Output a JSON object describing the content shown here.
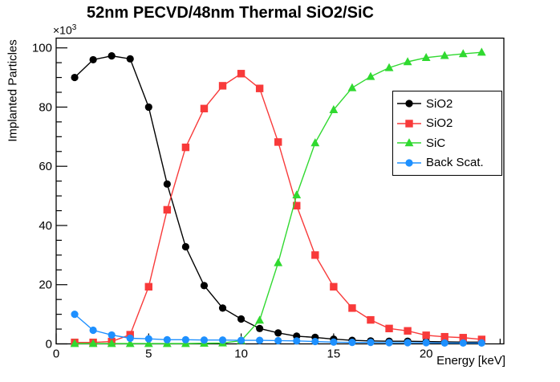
{
  "chart_data": {
    "type": "line",
    "title": "52nm PECVD/48nm Thermal SiO2/SiC",
    "xlabel": "Energy [keV]",
    "ylabel": "Implanted Particles",
    "y_multiplier_base": "×10",
    "y_multiplier_exp": "3",
    "y_unit_multiplier": 1000,
    "grid": false,
    "legend_position": "right-middle",
    "xlim": [
      0,
      24.2
    ],
    "ylim": [
      0,
      103.3
    ],
    "x_major_ticks": [
      0,
      5,
      10,
      15,
      20
    ],
    "x_minor_step": 1,
    "y_major_ticks": [
      0,
      20,
      40,
      60,
      80,
      100
    ],
    "y_minor_step": 5,
    "x": [
      1,
      2,
      3,
      4,
      5,
      6,
      7,
      8,
      9,
      10,
      11,
      12,
      13,
      14,
      15,
      16,
      17,
      18,
      19,
      20,
      21,
      22,
      23
    ],
    "series": [
      {
        "name": "SiO2",
        "color": "#000000",
        "marker": "circle",
        "values": [
          90.0,
          96.0,
          97.3,
          96.3,
          80.0,
          54.0,
          32.8,
          19.7,
          12.1,
          8.4,
          5.2,
          3.7,
          2.6,
          2.2,
          1.6,
          1.2,
          1.0,
          0.9,
          0.9,
          0.8,
          0.7,
          0.6,
          0.6
        ]
      },
      {
        "name": "SiO2",
        "color": "#f83a3a",
        "marker": "square",
        "values": [
          0.5,
          0.5,
          0.8,
          3.1,
          19.3,
          45.3,
          66.4,
          79.5,
          87.2,
          91.3,
          86.3,
          68.2,
          46.7,
          30.0,
          19.3,
          12.1,
          8.1,
          5.2,
          4.4,
          2.9,
          2.4,
          2.1,
          1.5
        ]
      },
      {
        "name": "SiC",
        "color": "#30d930",
        "marker": "triangle",
        "values": [
          0.1,
          0.1,
          0.1,
          0.1,
          0.1,
          0.1,
          0.1,
          0.2,
          0.3,
          1.1,
          8.0,
          27.4,
          50.3,
          67.9,
          79.1,
          86.5,
          90.3,
          93.3,
          95.3,
          96.7,
          97.4,
          98.0,
          98.5
        ]
      },
      {
        "name": "Back Scat.",
        "color": "#1e90ff",
        "marker": "circle",
        "values": [
          10.0,
          4.6,
          3.0,
          1.9,
          1.7,
          1.4,
          1.4,
          1.3,
          1.3,
          1.2,
          1.2,
          1.1,
          1.0,
          0.8,
          0.6,
          0.5,
          0.5,
          0.4,
          0.4,
          0.4,
          0.3,
          0.3,
          0.3
        ]
      }
    ]
  },
  "legend": {
    "items": [
      {
        "label": "SiO2",
        "color": "#000000",
        "marker": "circle"
      },
      {
        "label": "SiO2",
        "color": "#f83a3a",
        "marker": "square"
      },
      {
        "label": "SiC",
        "color": "#30d930",
        "marker": "triangle"
      },
      {
        "label": "Back Scat.",
        "color": "#1e90ff",
        "marker": "circle"
      }
    ]
  }
}
